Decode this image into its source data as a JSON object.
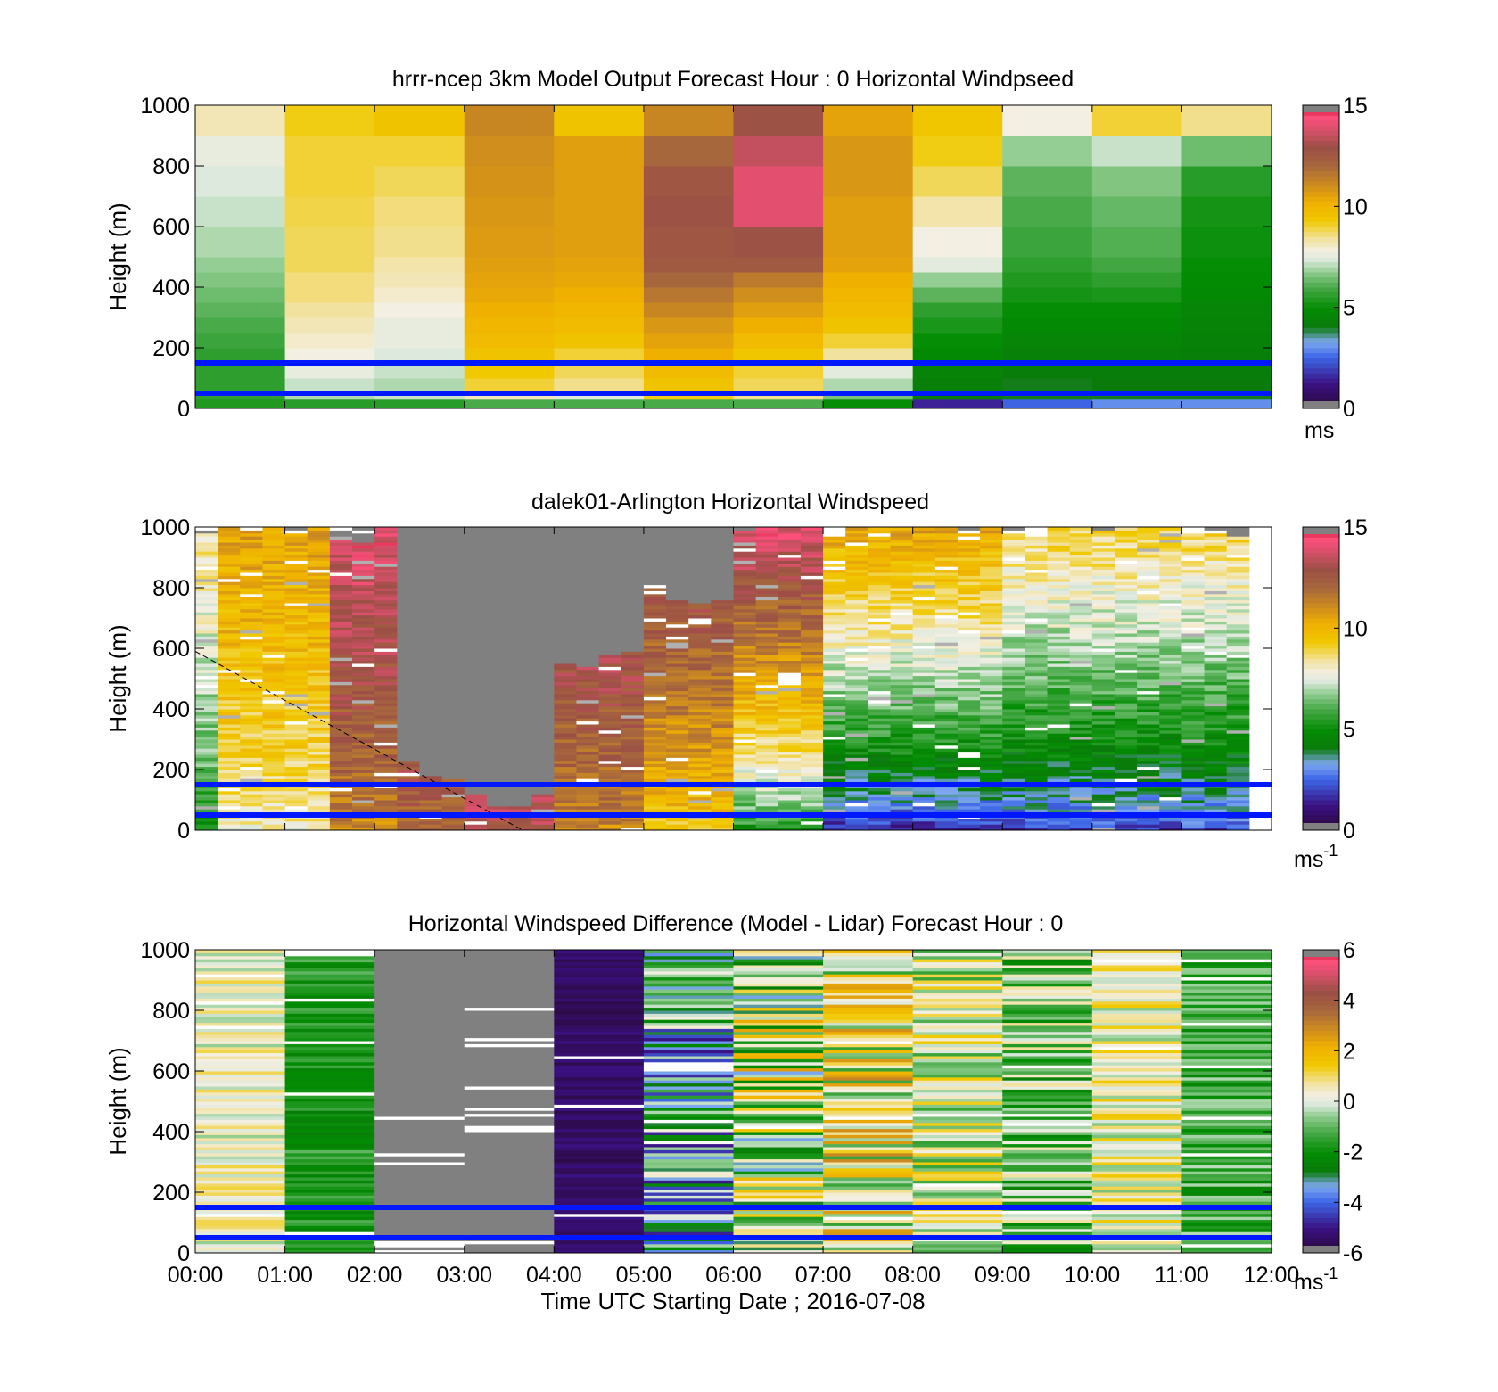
{
  "chart_data": [
    {
      "type": "heatmap",
      "title": "hrrr-ncep 3km Model Output   Forecast Hour : 0 Horizontal Windpseed",
      "ylabel": "Height (m)",
      "xlabel": "",
      "ylim": [
        0,
        1000
      ],
      "yticks": [
        "0",
        "200",
        "400",
        "600",
        "800",
        "1000"
      ],
      "x_categories": [
        "00:00",
        "01:00",
        "02:00",
        "03:00",
        "04:00",
        "05:00",
        "06:00",
        "07:00",
        "08:00",
        "09:00",
        "10:00",
        "11:00"
      ],
      "colorbar": {
        "min": 0,
        "max": 15,
        "ticks": [
          "0",
          "5",
          "10",
          "15"
        ],
        "unit_label": "ms",
        "unit_superscript": ""
      },
      "reference_lines_height_m": [
        150,
        50
      ],
      "height_bands_m": [
        0,
        30,
        60,
        100,
        150,
        200,
        250,
        300,
        350,
        400,
        450,
        500,
        600,
        700,
        800,
        900,
        1000
      ],
      "values_by_hour": [
        [
          5.4,
          5.6,
          5.6,
          5.6,
          5.6,
          5.8,
          6.0,
          6.2,
          6.4,
          6.6,
          6.8,
          7.0,
          7.2,
          7.4,
          7.6,
          8.2
        ],
        [
          5.5,
          7.0,
          7.2,
          7.6,
          7.8,
          8.0,
          8.2,
          8.4,
          8.6,
          8.6,
          8.8,
          8.8,
          8.9,
          9.0,
          9.0,
          9.2
        ],
        [
          5.5,
          7.2,
          7.0,
          7.2,
          7.4,
          7.6,
          7.6,
          7.8,
          8.0,
          8.2,
          8.3,
          8.5,
          8.6,
          8.8,
          9.0,
          9.5
        ],
        [
          6.0,
          8.2,
          9.0,
          9.3,
          9.5,
          9.8,
          10.0,
          10.2,
          10.4,
          10.5,
          10.6,
          10.7,
          10.8,
          10.9,
          11.0,
          11.2
        ],
        [
          6.0,
          7.4,
          8.5,
          8.8,
          9.0,
          9.5,
          9.8,
          10.0,
          10.2,
          10.4,
          10.5,
          10.6,
          10.6,
          10.6,
          10.6,
          9.5
        ],
        [
          6.0,
          9.2,
          9.5,
          9.8,
          10.2,
          10.5,
          10.8,
          11.2,
          11.6,
          12.0,
          12.5,
          12.6,
          12.8,
          12.6,
          12.0,
          11.2
        ],
        [
          6.0,
          8.5,
          8.8,
          9.0,
          9.4,
          9.8,
          10.2,
          10.6,
          11.0,
          11.5,
          12.5,
          12.8,
          14.0,
          14.0,
          13.5,
          12.8
        ],
        [
          5.0,
          6.5,
          7.0,
          7.5,
          8.4,
          9.0,
          9.5,
          9.8,
          10.0,
          10.2,
          10.5,
          10.6,
          10.6,
          10.8,
          10.8,
          10.5
        ],
        [
          1.5,
          4.2,
          4.3,
          4.5,
          4.8,
          5.0,
          5.3,
          5.6,
          6.2,
          6.8,
          7.5,
          7.8,
          8.3,
          8.8,
          9.2,
          9.4
        ],
        [
          2.5,
          4.0,
          4.0,
          4.2,
          4.4,
          4.6,
          4.8,
          5.0,
          5.2,
          5.4,
          5.6,
          5.8,
          6.0,
          6.2,
          6.8,
          7.8
        ],
        [
          3.0,
          4.0,
          4.1,
          4.2,
          4.4,
          4.6,
          4.8,
          5.0,
          5.3,
          5.6,
          5.9,
          6.1,
          6.3,
          6.6,
          7.2,
          9.0
        ],
        [
          3.0,
          4.0,
          4.1,
          4.2,
          4.3,
          4.4,
          4.5,
          4.6,
          4.8,
          4.9,
          5.0,
          5.1,
          5.2,
          5.5,
          6.4,
          8.5
        ]
      ]
    },
    {
      "type": "heatmap",
      "title": "dalek01-Arlington  Horizontal Windspeed",
      "ylabel": "Height (m)",
      "xlabel": "",
      "ylim": [
        0,
        1000
      ],
      "yticks": [
        "0",
        "200",
        "400",
        "600",
        "800",
        "1000"
      ],
      "colorbar": {
        "min": 0,
        "max": 15,
        "ticks": [
          "0",
          "5",
          "10",
          "15"
        ],
        "unit_label": "ms",
        "unit_superscript": "-1"
      },
      "reference_lines_height_m": [
        150,
        50
      ],
      "columns_per_hour": 4,
      "time_span_hours": [
        0,
        11.75
      ],
      "height_resolution_m": 10,
      "no_data_color": "#808080",
      "regimes": [
        {
          "time_hours": [
            0.0,
            0.25
          ],
          "speed_m_s": [
            5.0,
            8.5
          ],
          "top_m": 1000
        },
        {
          "time_hours": [
            0.25,
            1.5
          ],
          "speed_m_s": [
            8.0,
            10.5
          ],
          "top_m": 1000
        },
        {
          "time_hours": [
            1.5,
            2.25
          ],
          "speed_m_s": [
            11.0,
            14.0
          ],
          "top_m": 980
        },
        {
          "time_hours": [
            2.25,
            3.0
          ],
          "speed_m_s": [
            12.0,
            14.0
          ],
          "top_m": 200
        },
        {
          "time_hours": [
            3.0,
            4.0
          ],
          "speed_m_s": [
            13.0,
            14.0
          ],
          "top_m": 100
        },
        {
          "time_hours": [
            4.0,
            5.0
          ],
          "speed_m_s": [
            11.0,
            14.0
          ],
          "top_m": 550
        },
        {
          "time_hours": [
            5.0,
            6.0
          ],
          "speed_m_s": [
            9.0,
            13.5
          ],
          "top_m": 780
        },
        {
          "time_hours": [
            6.0,
            7.0
          ],
          "speed_m_s": [
            5.0,
            14.0
          ],
          "top_m": 1000
        },
        {
          "time_hours": [
            7.0,
            9.0
          ],
          "speed_m_s": [
            1.5,
            10.5
          ],
          "top_m": 1000
        },
        {
          "time_hours": [
            9.0,
            11.75
          ],
          "speed_m_s": [
            2.0,
            9.0
          ],
          "top_m": 990
        }
      ],
      "dashed_line": {
        "from": {
          "time_hours": 0.0,
          "height_m": 590
        },
        "to": {
          "time_hours": 3.65,
          "height_m": 0
        }
      }
    },
    {
      "type": "heatmap",
      "title": "Horizontal Windspeed Difference (Model - Lidar) Forecast Hour : 0",
      "ylabel": "Height (m)",
      "xlabel": "Time UTC  Starting Date ; 2016-07-08",
      "ylim": [
        0,
        1000
      ],
      "yticks": [
        "0",
        "200",
        "400",
        "600",
        "800",
        "1000"
      ],
      "xticks": [
        "00:00",
        "01:00",
        "02:00",
        "03:00",
        "04:00",
        "05:00",
        "06:00",
        "07:00",
        "08:00",
        "09:00",
        "10:00",
        "11:00",
        "12:00"
      ],
      "colorbar": {
        "min": -6,
        "max": 6,
        "ticks": [
          "-6",
          "-4",
          "-2",
          "0",
          "2",
          "4",
          "6"
        ],
        "unit_label": "ms",
        "unit_superscript": "-1"
      },
      "reference_lines_height_m": [
        150,
        50
      ],
      "no_data_color": "#808080",
      "hourly_difference_m_s": [
        {
          "hour": "00:00",
          "range": [
            -0.6,
            1.2
          ]
        },
        {
          "hour": "01:00",
          "range": [
            -2.6,
            -1.0
          ]
        },
        {
          "hour": "02:00",
          "range": [
            null,
            null
          ],
          "note_color": "no-data"
        },
        {
          "hour": "03:00",
          "range": [
            null,
            null
          ],
          "note_color": "no-data"
        },
        {
          "hour": "04:00",
          "range": [
            -5.8,
            -5.0
          ]
        },
        {
          "hour": "05:00",
          "range": [
            -5.0,
            0.5
          ]
        },
        {
          "hour": "06:00",
          "range": [
            -3.5,
            2.5
          ]
        },
        {
          "hour": "07:00",
          "range": [
            -1.5,
            3.0
          ]
        },
        {
          "hour": "08:00",
          "range": [
            -1.5,
            1.5
          ]
        },
        {
          "hour": "09:00",
          "range": [
            -2.5,
            0.8
          ]
        },
        {
          "hour": "10:00",
          "range": [
            -0.8,
            1.6
          ]
        },
        {
          "hour": "11:00",
          "range": [
            -2.4,
            -0.3
          ]
        }
      ]
    }
  ]
}
